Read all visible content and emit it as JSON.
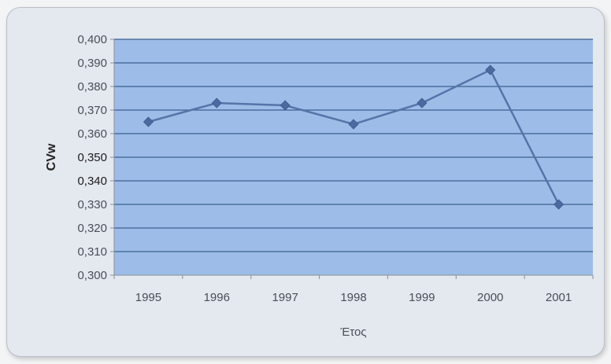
{
  "chart_data": {
    "type": "line",
    "title": "",
    "xlabel": "Έτος",
    "ylabel": "CVw",
    "x": [
      "1995",
      "1996",
      "1997",
      "1998",
      "1999",
      "2000",
      "2001"
    ],
    "series": [
      {
        "values": [
          0.365,
          0.373,
          0.372,
          0.364,
          0.373,
          0.387,
          0.33
        ]
      }
    ],
    "ylim": [
      0.3,
      0.4
    ],
    "y_ticks": [
      "0,300",
      "0,310",
      "0,320",
      "0,330",
      "0,340",
      "0,350",
      "0,360",
      "0,370",
      "0,380",
      "0,390",
      "0,400"
    ],
    "grid": true,
    "legend": "none",
    "colors": {
      "plot_background": "#9dbde8",
      "gridline": "#3c5f8f",
      "series": "#5674a8",
      "marker": "#4a6aa0",
      "card_background": "#e4e8ef"
    }
  }
}
